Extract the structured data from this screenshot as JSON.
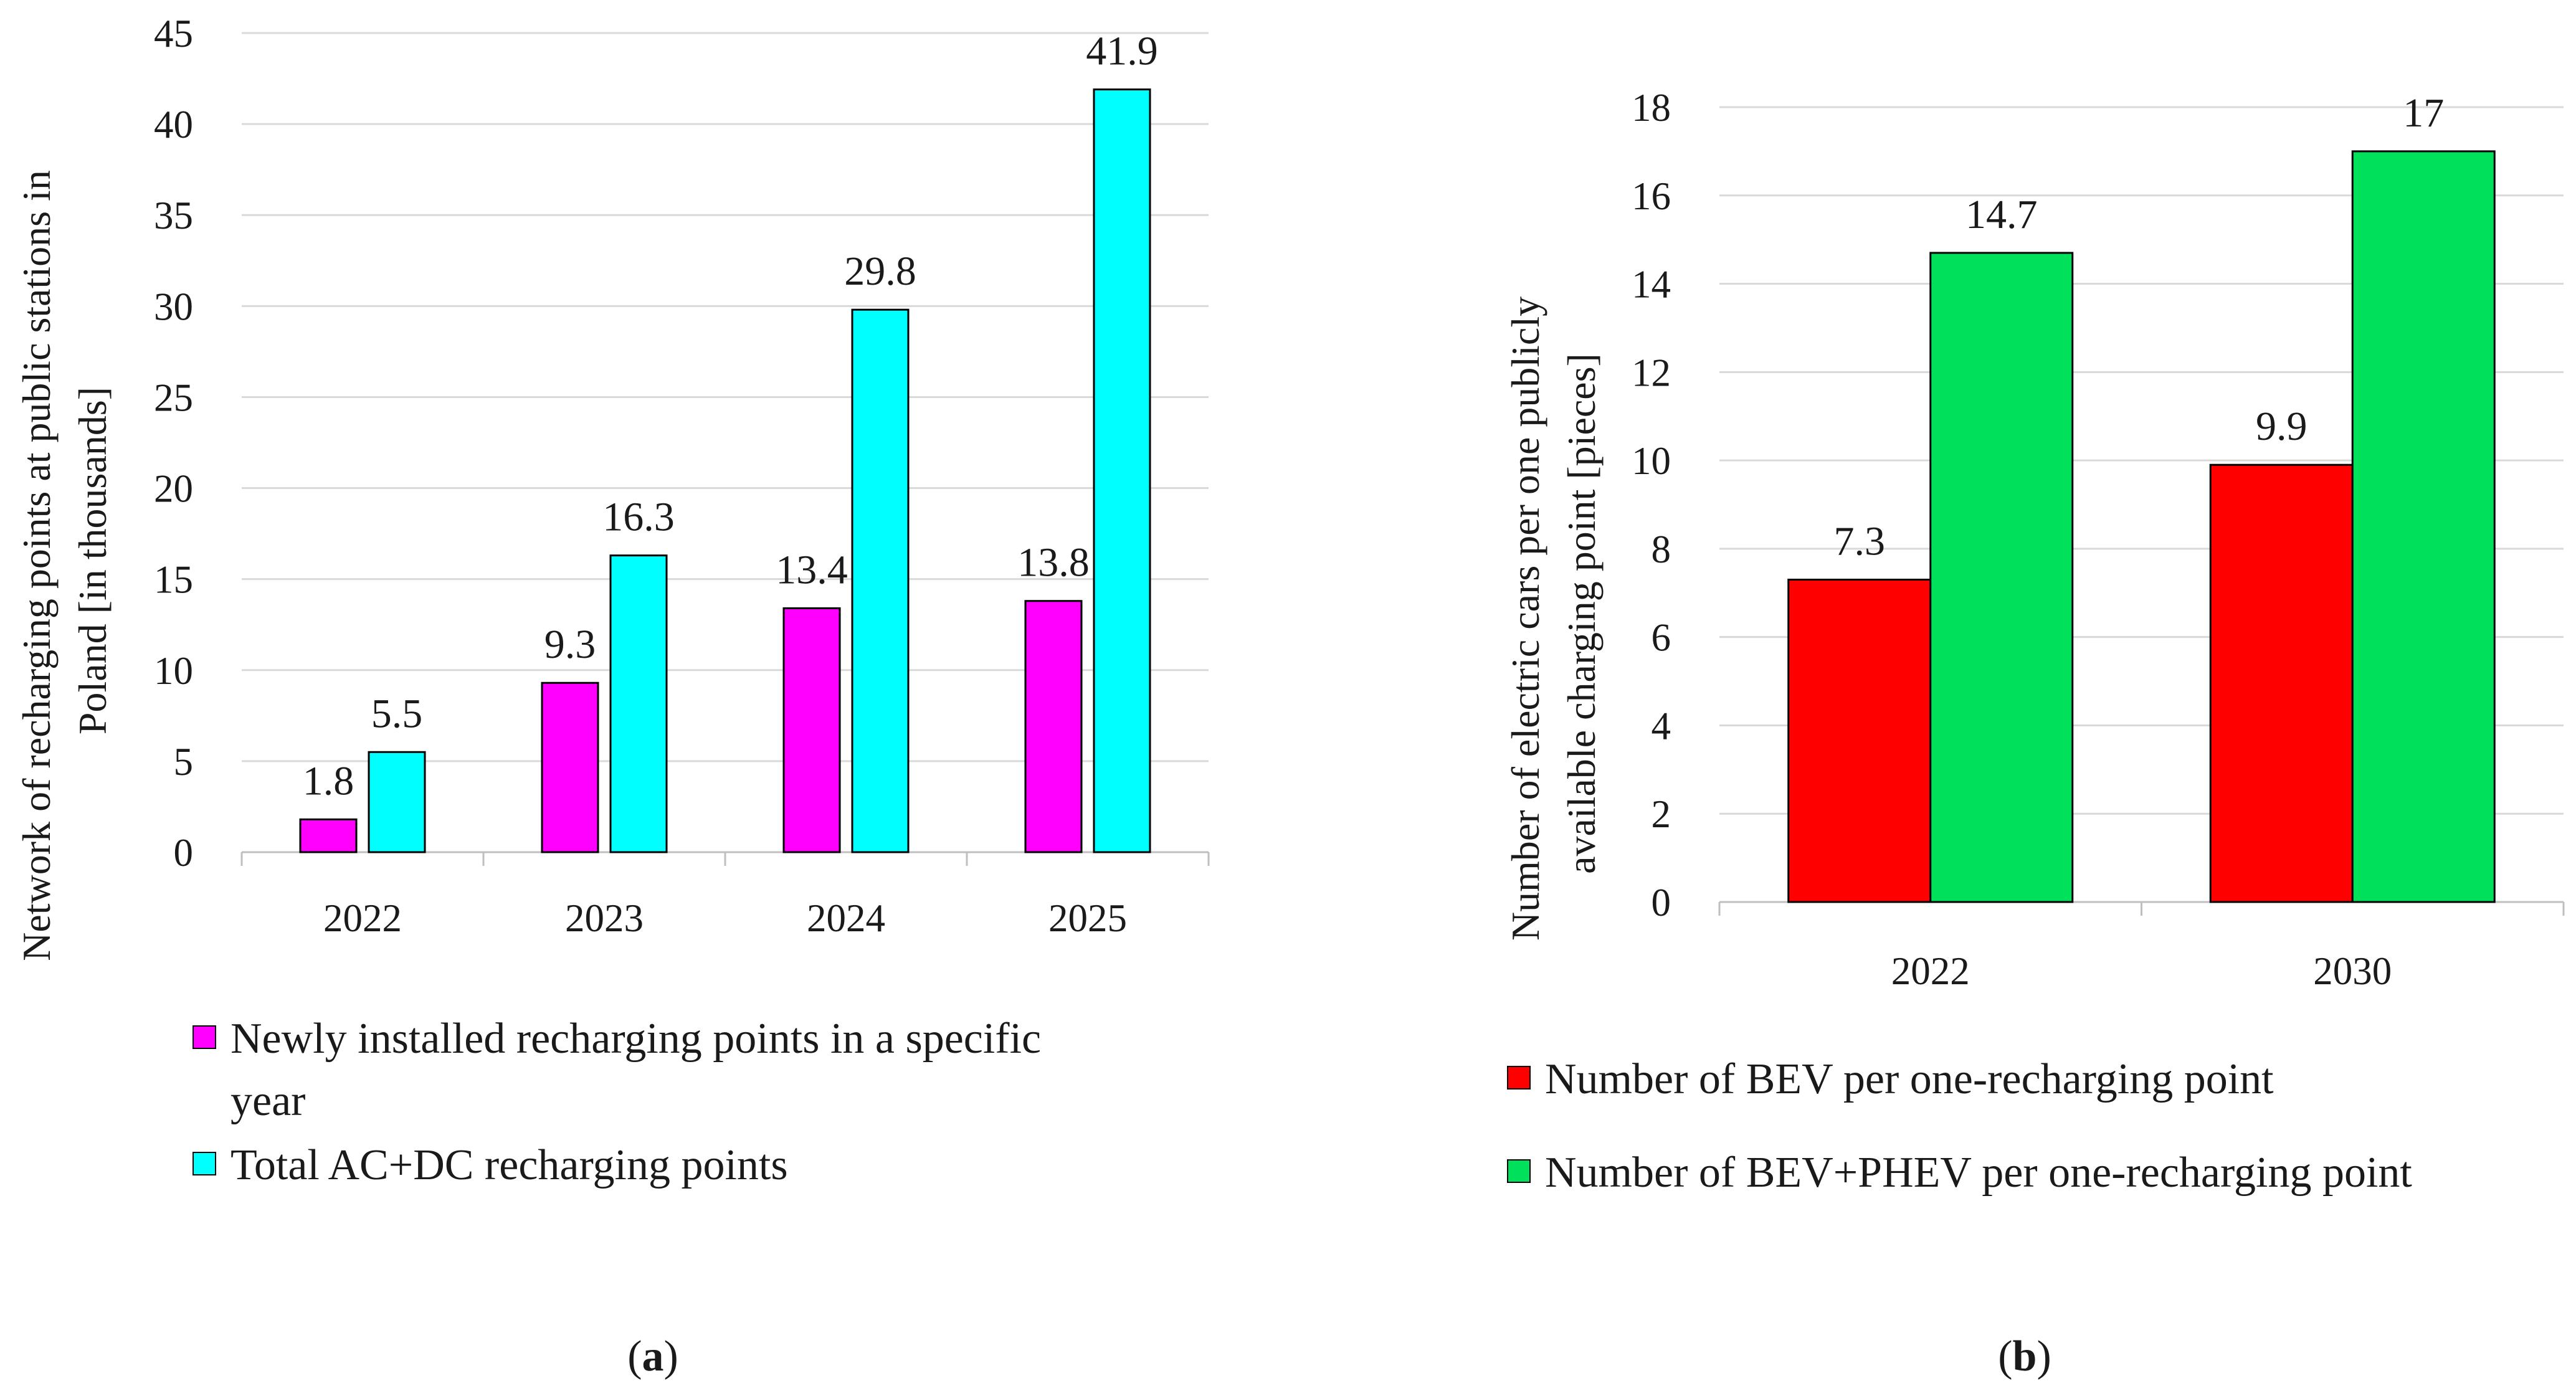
{
  "chart_data": [
    {
      "type": "bar",
      "panel": "a",
      "caption": "(a)",
      "caption_letter": "a",
      "categories": [
        "2022",
        "2023",
        "2024",
        "2025"
      ],
      "series": [
        {
          "name": "Newly installed recharging points in a specific year",
          "color": "#ff00ff",
          "values": [
            1.8,
            9.3,
            13.4,
            13.8
          ],
          "labels": [
            "1.8",
            "9.3",
            "13.4",
            "13.8"
          ]
        },
        {
          "name": "Total AC+DC recharging points",
          "color": "#00ffff",
          "values": [
            5.5,
            16.3,
            29.8,
            41.9
          ],
          "labels": [
            "5.5",
            "16.3",
            "29.8",
            "41.9"
          ]
        }
      ],
      "ylabel_lines": [
        "Network of recharging points at public stations in",
        "Poland [in thousands]"
      ],
      "legend_lines": [
        [
          "Newly installed recharging points in a specific",
          "year"
        ],
        [
          "Total AC+DC recharging points"
        ]
      ],
      "ylim": [
        0,
        45
      ],
      "yticks": [
        "0",
        "5",
        "10",
        "15",
        "20",
        "25",
        "30",
        "35",
        "40",
        "45"
      ],
      "grid": true,
      "legend": "bottom"
    },
    {
      "type": "bar",
      "panel": "b",
      "caption": "(b)",
      "caption_letter": "b",
      "categories": [
        "2022",
        "2030"
      ],
      "series": [
        {
          "name": "Number of BEV per one-recharging point",
          "color": "#ff0000",
          "values": [
            7.3,
            9.9
          ],
          "labels": [
            "7.3",
            "9.9"
          ]
        },
        {
          "name": "Number of BEV+PHEV per one-recharging point",
          "color": "#00e05a",
          "values": [
            14.7,
            17
          ],
          "labels": [
            "14.7",
            "17"
          ]
        }
      ],
      "ylabel_lines": [
        "Number of electric cars per one publicly",
        "available charging point [pieces]"
      ],
      "legend_lines": [
        [
          "Number of BEV per one-recharging point"
        ],
        [
          "Number of BEV+PHEV per one-recharging point"
        ]
      ],
      "ylim": [
        0,
        18
      ],
      "yticks": [
        "0",
        "2",
        "4",
        "6",
        "8",
        "10",
        "12",
        "14",
        "16",
        "18"
      ],
      "grid": true,
      "legend": "bottom"
    }
  ]
}
